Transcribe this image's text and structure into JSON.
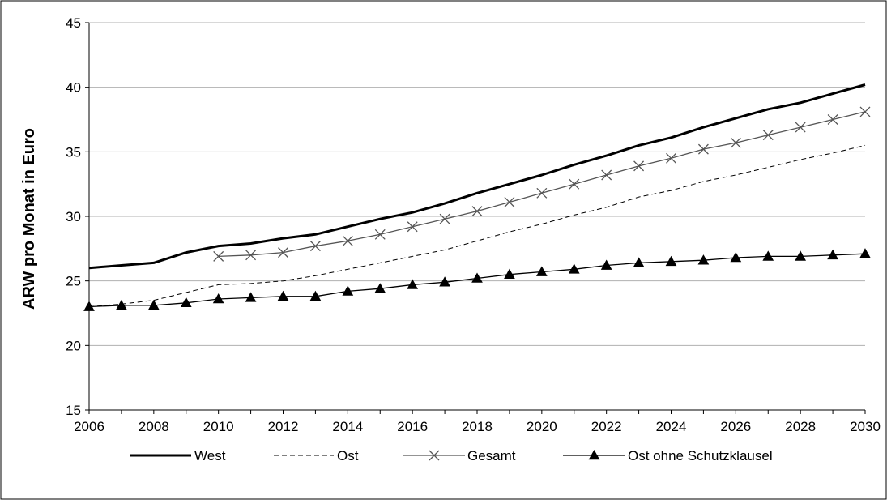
{
  "chart_data": {
    "type": "line",
    "title": "",
    "xlabel": "",
    "ylabel": "ARW pro Monat in Euro",
    "xlim": [
      2006,
      2030
    ],
    "ylim": [
      15,
      45
    ],
    "x_ticks": [
      "2006",
      "2008",
      "2010",
      "2012",
      "2014",
      "2016",
      "2018",
      "2020",
      "2022",
      "2024",
      "2026",
      "2028",
      "2030"
    ],
    "y_ticks": [
      "15",
      "20",
      "25",
      "30",
      "35",
      "40",
      "45"
    ],
    "grid": "horizontal",
    "legend_position": "bottom",
    "series": [
      {
        "name": "West",
        "style": "solid-thick",
        "color": "#000000",
        "x": [
          2006,
          2007,
          2008,
          2009,
          2010,
          2011,
          2012,
          2013,
          2014,
          2015,
          2016,
          2017,
          2018,
          2019,
          2020,
          2021,
          2022,
          2023,
          2024,
          2025,
          2026,
          2027,
          2028,
          2029,
          2030
        ],
        "y": [
          26.0,
          26.2,
          26.4,
          27.2,
          27.7,
          27.9,
          28.3,
          28.6,
          29.2,
          29.8,
          30.3,
          31.0,
          31.8,
          32.5,
          33.2,
          34.0,
          34.7,
          35.5,
          36.1,
          36.9,
          37.6,
          38.3,
          38.8,
          39.5,
          40.2
        ]
      },
      {
        "name": "Ost",
        "style": "dashed",
        "color": "#000000",
        "x": [
          2006,
          2007,
          2008,
          2009,
          2010,
          2011,
          2012,
          2013,
          2014,
          2015,
          2016,
          2017,
          2018,
          2019,
          2020,
          2021,
          2022,
          2023,
          2024,
          2025,
          2026,
          2027,
          2028,
          2029,
          2030
        ],
        "y": [
          23.0,
          23.2,
          23.5,
          24.1,
          24.7,
          24.8,
          25.0,
          25.4,
          25.9,
          26.4,
          26.9,
          27.4,
          28.1,
          28.8,
          29.4,
          30.1,
          30.7,
          31.5,
          32.0,
          32.7,
          33.2,
          33.8,
          34.4,
          34.9,
          35.5
        ]
      },
      {
        "name": "Gesamt",
        "style": "solid-x-marker",
        "color": "#555555",
        "x": [
          2010,
          2011,
          2012,
          2013,
          2014,
          2015,
          2016,
          2017,
          2018,
          2019,
          2020,
          2021,
          2022,
          2023,
          2024,
          2025,
          2026,
          2027,
          2028,
          2029,
          2030
        ],
        "y": [
          26.9,
          27.0,
          27.2,
          27.7,
          28.1,
          28.6,
          29.2,
          29.8,
          30.4,
          31.1,
          31.8,
          32.5,
          33.2,
          33.9,
          34.5,
          35.2,
          35.7,
          36.3,
          36.9,
          37.5,
          38.1
        ]
      },
      {
        "name": "Ost ohne Schutzklausel",
        "style": "solid-triangle-marker",
        "color": "#000000",
        "x": [
          2006,
          2007,
          2008,
          2009,
          2010,
          2011,
          2012,
          2013,
          2014,
          2015,
          2016,
          2017,
          2018,
          2019,
          2020,
          2021,
          2022,
          2023,
          2024,
          2025,
          2026,
          2027,
          2028,
          2029,
          2030
        ],
        "y": [
          23.0,
          23.1,
          23.1,
          23.3,
          23.6,
          23.7,
          23.8,
          23.8,
          24.2,
          24.4,
          24.7,
          24.9,
          25.2,
          25.5,
          25.7,
          25.9,
          26.2,
          26.4,
          26.5,
          26.6,
          26.8,
          26.9,
          26.9,
          27.0,
          27.1
        ]
      }
    ]
  }
}
